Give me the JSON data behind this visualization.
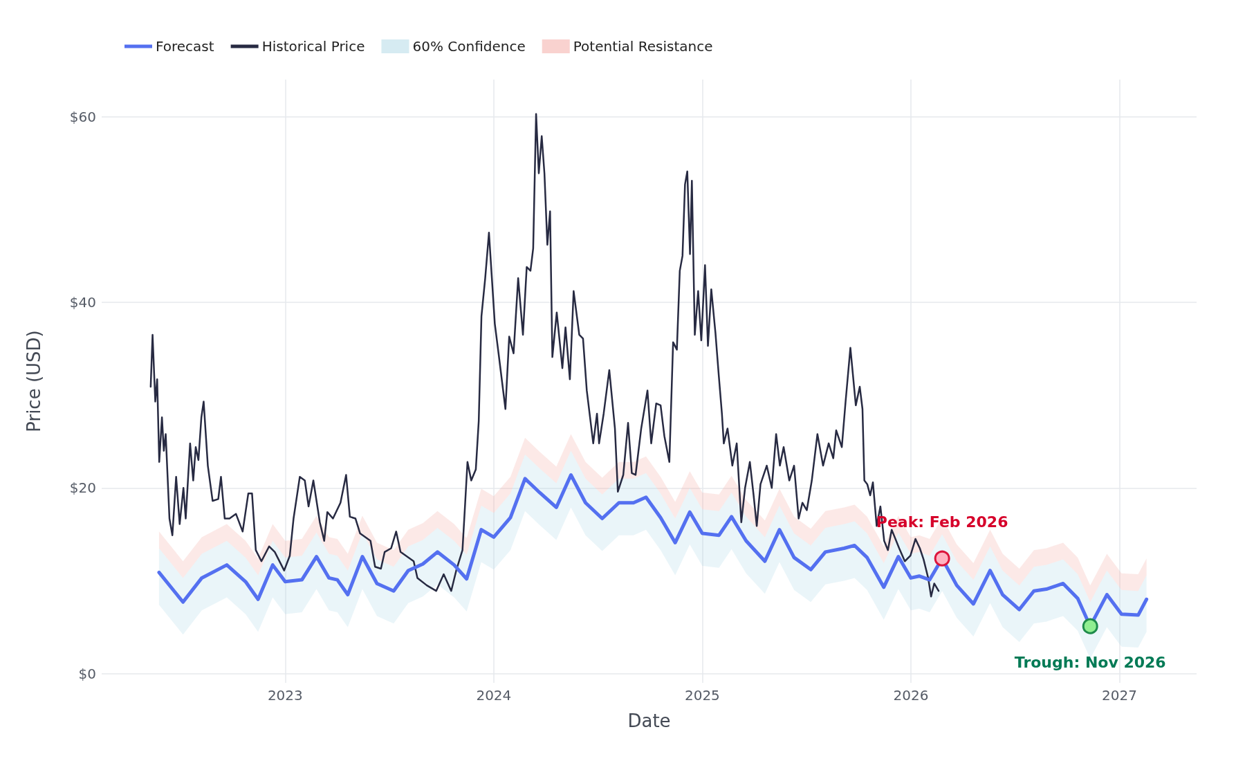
{
  "chart_data": {
    "type": "line",
    "xlabel": "Date",
    "ylabel": "Price (USD)",
    "xlim": [
      2022.12,
      2027.37
    ],
    "xticks": [
      2023,
      2024,
      2025,
      2026,
      2027
    ],
    "ylim": [
      -1,
      64
    ],
    "yticks": [
      {
        "value": 0,
        "label": "$0"
      },
      {
        "value": 20,
        "label": "$20"
      },
      {
        "value": 40,
        "label": "$40"
      },
      {
        "value": 60,
        "label": "$60"
      }
    ],
    "grid": true,
    "legend": "top left",
    "marker": "none",
    "line_style": "solid",
    "series": [
      {
        "name": "Forecast",
        "color": "#5470f0",
        "x": [
          2022.395,
          2022.51,
          2022.6,
          2022.72,
          2022.81,
          2022.87,
          2022.94,
          2023.0,
          2023.08,
          2023.15,
          2023.21,
          2023.25,
          2023.3,
          2023.37,
          2023.44,
          2023.52,
          2023.59,
          2023.66,
          2023.73,
          2023.81,
          2023.87,
          2023.94,
          2024.0,
          2024.08,
          2024.15,
          2024.22,
          2024.3,
          2024.37,
          2024.44,
          2024.52,
          2024.6,
          2024.67,
          2024.73,
          2024.8,
          2024.87,
          2024.94,
          2025.0,
          2025.08,
          2025.14,
          2025.21,
          2025.3,
          2025.37,
          2025.44,
          2025.52,
          2025.59,
          2025.68,
          2025.73,
          2025.79,
          2025.87,
          2025.94,
          2026.0,
          2026.04,
          2026.09,
          2026.15,
          2026.22,
          2026.3,
          2026.38,
          2026.44,
          2026.52,
          2026.59,
          2026.65,
          2026.73,
          2026.8,
          2026.86,
          2026.94,
          2027.01,
          2027.09,
          2027.13
        ],
        "values": [
          10.9,
          7.7,
          10.3,
          11.7,
          9.9,
          8.0,
          11.7,
          9.9,
          10.1,
          12.6,
          10.3,
          10.1,
          8.5,
          12.6,
          9.7,
          8.9,
          11.1,
          11.8,
          13.1,
          11.7,
          10.2,
          15.5,
          14.7,
          16.8,
          21.0,
          19.5,
          17.9,
          21.4,
          18.4,
          16.7,
          18.4,
          18.4,
          19.0,
          16.8,
          14.1,
          17.4,
          15.1,
          14.9,
          16.9,
          14.3,
          12.1,
          15.5,
          12.5,
          11.2,
          13.1,
          13.5,
          13.8,
          12.5,
          9.3,
          12.6,
          10.3,
          10.5,
          10.1,
          12.4,
          9.5,
          7.5,
          11.1,
          8.5,
          6.9,
          8.9,
          9.1,
          9.7,
          8.1,
          5.1,
          8.5,
          6.4,
          6.3,
          8.0
        ]
      },
      {
        "name": "Historical Price",
        "color": "#272a42",
        "x": [
          2022.355,
          2022.364,
          2022.377,
          2022.386,
          2022.396,
          2022.409,
          2022.418,
          2022.427,
          2022.445,
          2022.459,
          2022.477,
          2022.494,
          2022.512,
          2022.523,
          2022.544,
          2022.559,
          2022.571,
          2022.584,
          2022.598,
          2022.609,
          2022.629,
          2022.652,
          2022.679,
          2022.692,
          2022.71,
          2022.733,
          2022.764,
          2022.796,
          2022.823,
          2022.841,
          2022.859,
          2022.886,
          2022.923,
          2022.95,
          2022.995,
          2023.022,
          2023.04,
          2023.07,
          2023.094,
          2023.112,
          2023.135,
          2023.166,
          2023.187,
          2023.202,
          2023.229,
          2023.265,
          2023.292,
          2023.31,
          2023.337,
          2023.359,
          2023.409,
          2023.431,
          2023.459,
          2023.477,
          2023.508,
          2023.532,
          2023.553,
          2023.616,
          2023.634,
          2023.679,
          2023.724,
          2023.76,
          2023.796,
          2023.82,
          2023.85,
          2023.863,
          2023.874,
          2023.892,
          2023.914,
          2023.928,
          2023.941,
          2023.959,
          2023.977,
          2024.005,
          2024.023,
          2024.056,
          2024.074,
          2024.095,
          2024.117,
          2024.14,
          2024.158,
          2024.176,
          2024.189,
          2024.203,
          2024.216,
          2024.23,
          2024.243,
          2024.257,
          2024.27,
          2024.281,
          2024.302,
          2024.329,
          2024.344,
          2024.365,
          2024.383,
          2024.41,
          2024.428,
          2024.446,
          2024.477,
          2024.495,
          2024.505,
          2024.527,
          2024.554,
          2024.581,
          2024.595,
          2024.621,
          2024.644,
          2024.662,
          2024.68,
          2024.707,
          2024.737,
          2024.755,
          2024.779,
          2024.8,
          2024.818,
          2024.842,
          2024.86,
          2024.878,
          2024.892,
          2024.905,
          2024.917,
          2024.928,
          2024.941,
          2024.95,
          2024.964,
          2024.98,
          2024.995,
          2025.013,
          2025.027,
          2025.043,
          2025.063,
          2025.079,
          2025.094,
          2025.103,
          2025.121,
          2025.144,
          2025.165,
          2025.187,
          2025.205,
          2025.228,
          2025.246,
          2025.261,
          2025.279,
          2025.309,
          2025.333,
          2025.354,
          2025.372,
          2025.39,
          2025.417,
          2025.44,
          2025.462,
          2025.48,
          2025.501,
          2025.525,
          2025.552,
          2025.579,
          2025.606,
          2025.628,
          2025.642,
          2025.669,
          2025.687,
          2025.71,
          2025.736,
          2025.755,
          2025.768,
          2025.777,
          2025.791,
          2025.805,
          2025.818,
          2025.836,
          2025.854,
          2025.872,
          2025.89,
          2025.908,
          2025.944,
          2025.971,
          2025.998,
          2026.022,
          2026.043,
          2026.061,
          2026.083,
          2026.097,
          2026.112,
          2026.133
        ],
        "values": [
          30.9,
          36.5,
          29.3,
          31.7,
          22.8,
          27.6,
          24.0,
          25.8,
          16.7,
          14.9,
          21.2,
          16.1,
          20.0,
          16.7,
          24.8,
          20.8,
          24.4,
          23.0,
          27.6,
          29.3,
          22.4,
          18.6,
          18.8,
          21.2,
          16.7,
          16.7,
          17.2,
          15.3,
          19.4,
          19.4,
          13.3,
          12.1,
          13.7,
          13.1,
          11.1,
          12.7,
          16.7,
          21.2,
          20.8,
          18.0,
          20.8,
          16.3,
          14.3,
          17.4,
          16.7,
          18.4,
          21.4,
          16.9,
          16.7,
          15.1,
          14.3,
          11.5,
          11.3,
          13.1,
          13.5,
          15.3,
          13.1,
          12.1,
          10.3,
          9.5,
          8.9,
          10.7,
          8.9,
          11.1,
          13.3,
          18.4,
          22.8,
          20.8,
          22.0,
          27.2,
          38.5,
          42.6,
          47.5,
          37.7,
          34.5,
          28.5,
          36.3,
          34.5,
          42.6,
          36.5,
          43.8,
          43.4,
          45.8,
          60.3,
          53.9,
          57.9,
          53.9,
          46.2,
          49.8,
          34.1,
          38.9,
          32.9,
          37.3,
          31.7,
          41.2,
          36.5,
          36.1,
          30.5,
          24.8,
          28.0,
          24.8,
          28.0,
          32.7,
          26.4,
          19.6,
          21.4,
          27.0,
          21.6,
          21.4,
          26.4,
          30.5,
          24.8,
          29.1,
          28.9,
          25.6,
          22.8,
          35.7,
          34.9,
          43.4,
          45.0,
          52.7,
          54.1,
          45.2,
          53.1,
          36.5,
          41.2,
          35.9,
          44.0,
          35.3,
          41.4,
          36.7,
          32.1,
          28.0,
          24.8,
          26.4,
          22.4,
          24.8,
          16.3,
          20.0,
          22.8,
          19.2,
          15.9,
          20.4,
          22.4,
          20.0,
          25.8,
          22.4,
          24.4,
          20.8,
          22.4,
          16.7,
          18.4,
          17.6,
          20.8,
          25.8,
          22.4,
          24.8,
          23.2,
          26.2,
          24.4,
          29.3,
          35.1,
          28.9,
          30.9,
          28.5,
          20.8,
          20.4,
          19.2,
          20.6,
          15.9,
          18.0,
          14.3,
          13.3,
          15.5,
          13.5,
          12.1,
          12.7,
          14.5,
          13.5,
          12.3,
          10.3,
          8.3,
          9.7,
          8.9
        ]
      },
      {
        "name": "60% Confidence",
        "color": "#add8e6",
        "x": [
          2022.395,
          2022.51,
          2022.6,
          2022.72,
          2022.81,
          2022.87,
          2022.94,
          2023.0,
          2023.08,
          2023.15,
          2023.21,
          2023.25,
          2023.3,
          2023.37,
          2023.44,
          2023.52,
          2023.59,
          2023.66,
          2023.73,
          2023.81,
          2023.87,
          2023.94,
          2024.0,
          2024.08,
          2024.15,
          2024.22,
          2024.3,
          2024.37,
          2024.44,
          2024.52,
          2024.6,
          2024.67,
          2024.73,
          2024.8,
          2024.87,
          2024.94,
          2025.0,
          2025.08,
          2025.14,
          2025.21,
          2025.3,
          2025.37,
          2025.44,
          2025.52,
          2025.59,
          2025.68,
          2025.73,
          2025.79,
          2025.87,
          2025.94,
          2026.0,
          2026.04,
          2026.09,
          2026.15,
          2026.22,
          2026.3,
          2026.38,
          2026.44,
          2026.52,
          2026.59,
          2026.65,
          2026.73,
          2026.8,
          2026.86,
          2026.94,
          2027.01,
          2027.09,
          2027.13
        ],
        "lower": [
          7.4,
          4.2,
          6.8,
          8.2,
          6.4,
          4.5,
          8.2,
          6.4,
          6.6,
          9.1,
          6.8,
          6.6,
          5.0,
          9.1,
          6.2,
          5.4,
          7.6,
          8.3,
          9.6,
          8.2,
          6.7,
          12.0,
          11.2,
          13.3,
          17.5,
          16.0,
          14.4,
          17.9,
          14.9,
          13.2,
          14.9,
          14.9,
          15.5,
          13.3,
          10.6,
          13.9,
          11.6,
          11.4,
          13.4,
          10.8,
          8.6,
          12.0,
          9.0,
          7.7,
          9.6,
          10.0,
          10.3,
          9.0,
          5.8,
          9.1,
          6.8,
          7.0,
          6.6,
          8.9,
          6.0,
          4.0,
          7.6,
          5.0,
          3.4,
          5.4,
          5.6,
          6.2,
          4.6,
          1.6,
          5.0,
          2.9,
          2.8,
          4.5
        ],
        "upper": [
          13.5,
          10.3,
          12.9,
          14.3,
          12.5,
          10.6,
          14.3,
          12.5,
          12.7,
          15.2,
          12.9,
          12.7,
          11.1,
          15.2,
          12.3,
          11.5,
          13.7,
          14.4,
          15.7,
          14.3,
          12.8,
          18.1,
          17.3,
          19.4,
          23.6,
          22.1,
          20.5,
          24.0,
          21.0,
          19.3,
          21.0,
          21.0,
          21.6,
          19.4,
          16.7,
          20.0,
          17.7,
          17.5,
          19.5,
          16.9,
          14.7,
          18.1,
          15.1,
          13.8,
          15.7,
          16.1,
          16.4,
          15.1,
          11.9,
          15.2,
          12.9,
          13.1,
          12.7,
          15.0,
          12.1,
          10.1,
          13.7,
          11.1,
          9.5,
          11.5,
          11.7,
          12.3,
          10.7,
          7.7,
          11.1,
          9.0,
          8.9,
          10.6
        ],
        "values": [
          null,
          null,
          null,
          null,
          null,
          null,
          null,
          null,
          null,
          null,
          null,
          null,
          null,
          null,
          null,
          null,
          null,
          null,
          null,
          null,
          null,
          null,
          null,
          null,
          null,
          null,
          null,
          null,
          null,
          null,
          null,
          null,
          null,
          null,
          null,
          null,
          null,
          null,
          null,
          null,
          null,
          null,
          null,
          null,
          null,
          null,
          null,
          null,
          null,
          null,
          null,
          null,
          null,
          null,
          null,
          null,
          null,
          null,
          null,
          null,
          null,
          null,
          null,
          null,
          null,
          null,
          null,
          null
        ]
      },
      {
        "name": "Potential Resistance",
        "color": "#f4a6a0",
        "x": [
          2022.395,
          2022.51,
          2022.6,
          2022.72,
          2022.81,
          2022.87,
          2022.94,
          2023.0,
          2023.08,
          2023.15,
          2023.21,
          2023.25,
          2023.3,
          2023.37,
          2023.44,
          2023.52,
          2023.59,
          2023.66,
          2023.73,
          2023.81,
          2023.87,
          2023.94,
          2024.0,
          2024.08,
          2024.15,
          2024.22,
          2024.3,
          2024.37,
          2024.44,
          2024.52,
          2024.6,
          2024.67,
          2024.73,
          2024.8,
          2024.87,
          2024.94,
          2025.0,
          2025.08,
          2025.14,
          2025.21,
          2025.3,
          2025.37,
          2025.44,
          2025.52,
          2025.59,
          2025.68,
          2025.73,
          2025.79,
          2025.87,
          2025.94,
          2026.0,
          2026.04,
          2026.09,
          2026.15,
          2026.22,
          2026.3,
          2026.38,
          2026.44,
          2026.52,
          2026.59,
          2026.65,
          2026.73,
          2026.8,
          2026.86,
          2026.94,
          2027.01,
          2027.09,
          2027.13
        ],
        "lower": [
          13.5,
          10.3,
          12.9,
          14.3,
          12.5,
          10.6,
          14.3,
          12.5,
          12.7,
          15.2,
          12.9,
          12.7,
          11.1,
          15.2,
          12.3,
          11.5,
          13.7,
          14.4,
          15.7,
          14.3,
          12.8,
          18.1,
          17.3,
          19.4,
          23.6,
          22.1,
          20.5,
          24.0,
          21.0,
          19.3,
          21.0,
          21.0,
          21.6,
          19.4,
          16.7,
          20.0,
          17.7,
          17.5,
          19.5,
          16.9,
          14.7,
          18.1,
          15.1,
          13.8,
          15.7,
          16.1,
          16.4,
          15.1,
          11.9,
          15.2,
          12.9,
          13.1,
          12.7,
          15.0,
          12.1,
          10.1,
          13.7,
          11.1,
          9.5,
          11.5,
          11.7,
          12.3,
          10.7,
          7.7,
          11.1,
          9.0,
          8.9,
          10.6
        ],
        "values": [
          null,
          null,
          null,
          null,
          null,
          null,
          null,
          null,
          null,
          null,
          null,
          null,
          null,
          null,
          null,
          null,
          null,
          null,
          null,
          null,
          null,
          null,
          null,
          null,
          null,
          null,
          null,
          null,
          null,
          null,
          null,
          null,
          null,
          null,
          null,
          null,
          null,
          null,
          null,
          null,
          null,
          null,
          null,
          null,
          null,
          null,
          null,
          null,
          null,
          null,
          null,
          null,
          null,
          null,
          null,
          null,
          null,
          null,
          null,
          null,
          null,
          null,
          null,
          null,
          null,
          null,
          null,
          null
        ],
        "upper": [
          15.3,
          12.1,
          14.7,
          16.1,
          14.3,
          12.4,
          16.1,
          14.3,
          14.5,
          17.0,
          14.7,
          14.5,
          12.9,
          17.0,
          14.1,
          13.3,
          15.5,
          16.2,
          17.5,
          16.1,
          14.6,
          19.9,
          19.1,
          21.2,
          25.4,
          23.9,
          22.3,
          25.8,
          22.8,
          21.1,
          22.8,
          22.8,
          23.4,
          21.2,
          18.5,
          21.8,
          19.5,
          19.3,
          21.3,
          18.7,
          16.5,
          19.9,
          16.9,
          15.6,
          17.5,
          17.9,
          18.2,
          16.9,
          13.7,
          17.0,
          14.7,
          14.9,
          14.5,
          16.8,
          13.9,
          11.9,
          15.5,
          12.9,
          11.3,
          13.3,
          13.5,
          14.1,
          12.5,
          9.5,
          12.9,
          10.8,
          10.7,
          12.4
        ]
      }
    ],
    "annotations": [
      {
        "text": "Peak: Feb 2026",
        "x": 2026.15,
        "y": 12.4
      },
      {
        "text": "Trough: Nov 2026",
        "x": 2026.86,
        "y": 5.1
      }
    ]
  }
}
